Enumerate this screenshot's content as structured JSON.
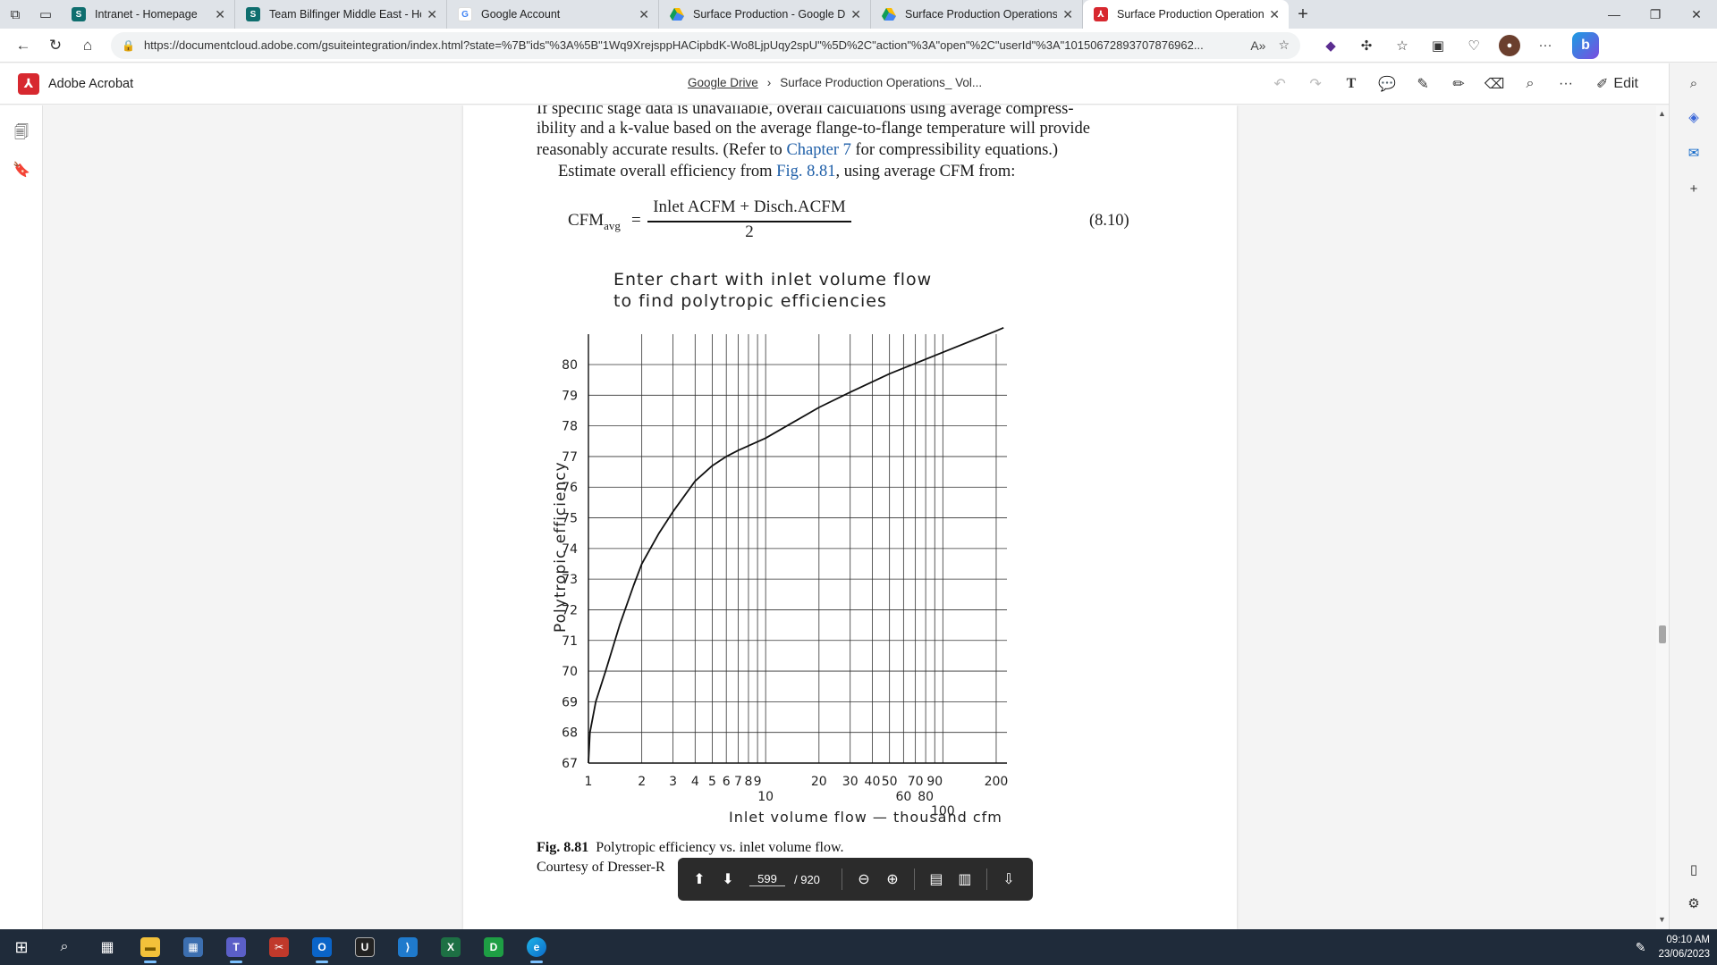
{
  "browser": {
    "tabs": [
      {
        "label": "Intranet - Homepage",
        "favicon_color": "#0f6e6e",
        "favicon": "S",
        "active": false
      },
      {
        "label": "Team Bilfinger Middle East - Hom",
        "favicon_color": "#0f6e6e",
        "favicon": "S",
        "active": false
      },
      {
        "label": "Google Account",
        "favicon_color": "#ffffff",
        "favicon": "G",
        "active": false
      },
      {
        "label": "Surface Production - Google Driv",
        "favicon_color": "#ffffff",
        "favicon": "drive",
        "active": false
      },
      {
        "label": "Surface Production Operations_",
        "favicon_color": "#ffffff",
        "favicon": "drive",
        "active": false
      },
      {
        "label": "Surface Production Operations_",
        "favicon_color": "#d7282f",
        "favicon": "pdf",
        "active": true
      }
    ],
    "url": "https://documentcloud.adobe.com/gsuiteintegration/index.html?state=%7B\"ids\"%3A%5B\"1Wq9XrejsppHACipbdK-Wo8LjpUqy2spU\"%5D%2C\"action\"%3A\"open\"%2C\"userId\"%3A\"10150672893707876962...",
    "accent": "#d7282f"
  },
  "acrobat": {
    "app_name": "Adobe Acrobat",
    "breadcrumb_root": "Google Drive",
    "breadcrumb_sep": "›",
    "breadcrumb_file": "Surface Production Operations_ Vol...",
    "edit_label": "Edit"
  },
  "doc": {
    "line0": "If specific stage data is unavailable, overall calculations using average compress-",
    "line1": "ibility and a k-value based on the average flange-to-flange temperature will provide",
    "line2a": "reasonably accurate results. (Refer to ",
    "line2_link": "Chapter 7",
    "line2b": " for compressibility equations.)",
    "line3a": "Estimate overall efficiency from ",
    "line3_link": "Fig. 8.81",
    "line3b": ", using average CFM from:",
    "eq_lhs": "CFM",
    "eq_sub": "avg",
    "eq_equals": "=",
    "eq_numerator": "Inlet ACFM + Disch.ACFM",
    "eq_denominator": "2",
    "eq_number": "(8.10)",
    "caption_label": "Fig. 8.81",
    "caption_text": "Polytropic efficiency vs. inlet volume flow.",
    "courtesy": "Courtesy of Dresser-R"
  },
  "chart_data": {
    "type": "line",
    "title": "Enter chart with inlet volume flow",
    "subtitle": "to find polytropic efficiencies",
    "xlabel": "Inlet volume flow — thousand cfm",
    "ylabel": "Polytropic efficiency",
    "xscale": "log",
    "xlim": [
      1,
      250
    ],
    "ylim": [
      67,
      81
    ],
    "y_ticks": [
      "67",
      "68",
      "69",
      "70",
      "71",
      "72",
      "73",
      "74",
      "75",
      "76",
      "77",
      "78",
      "79",
      "80"
    ],
    "x_tick_labels": [
      {
        "value": 1,
        "label": "1",
        "row": 0
      },
      {
        "value": 2,
        "label": "2",
        "row": 0
      },
      {
        "value": 3,
        "label": "3",
        "row": 0
      },
      {
        "value": 4,
        "label": "4",
        "row": 0
      },
      {
        "value": 5,
        "label": "5",
        "row": 0
      },
      {
        "value": 6,
        "label": "6",
        "row": 0
      },
      {
        "value": 7,
        "label": "7",
        "row": 0
      },
      {
        "value": 8,
        "label": "8",
        "row": 0
      },
      {
        "value": 9,
        "label": "9",
        "row": 0
      },
      {
        "value": 10,
        "label": "10",
        "row": 1
      },
      {
        "value": 20,
        "label": "20",
        "row": 0
      },
      {
        "value": 30,
        "label": "30",
        "row": 0
      },
      {
        "value": 40,
        "label": "40",
        "row": 0
      },
      {
        "value": 50,
        "label": "50",
        "row": 0
      },
      {
        "value": 60,
        "label": "60",
        "row": 1
      },
      {
        "value": 70,
        "label": "70",
        "row": 0
      },
      {
        "value": 80,
        "label": "80",
        "row": 1
      },
      {
        "value": 90,
        "label": "90",
        "row": 0
      },
      {
        "value": 100,
        "label": "100",
        "row": 2
      },
      {
        "value": 200,
        "label": "200",
        "row": 0
      }
    ],
    "x_gridlines": [
      1,
      2,
      3,
      4,
      5,
      6,
      7,
      8,
      9,
      10,
      20,
      30,
      40,
      50,
      60,
      70,
      80,
      90,
      100,
      200
    ],
    "grid": true,
    "series": [
      {
        "x": [
          1.0,
          1.02,
          1.1,
          1.25,
          1.5,
          1.8,
          2.0,
          2.5,
          3.0,
          4.0,
          5.0,
          6.0,
          7.0,
          10.0,
          20.0,
          30.0,
          50.0,
          100.0,
          200.0,
          220.0
        ],
        "y": [
          67.0,
          68.0,
          69.0,
          70.0,
          71.5,
          72.8,
          73.5,
          74.5,
          75.2,
          76.2,
          76.7,
          77.0,
          77.2,
          77.6,
          78.6,
          79.1,
          79.7,
          80.4,
          81.1,
          81.2
        ]
      }
    ]
  },
  "pager": {
    "current_page": "599",
    "total_pages": "/ 920"
  },
  "taskbar": {
    "time": "09:10 AM",
    "date": "23/06/2023"
  }
}
